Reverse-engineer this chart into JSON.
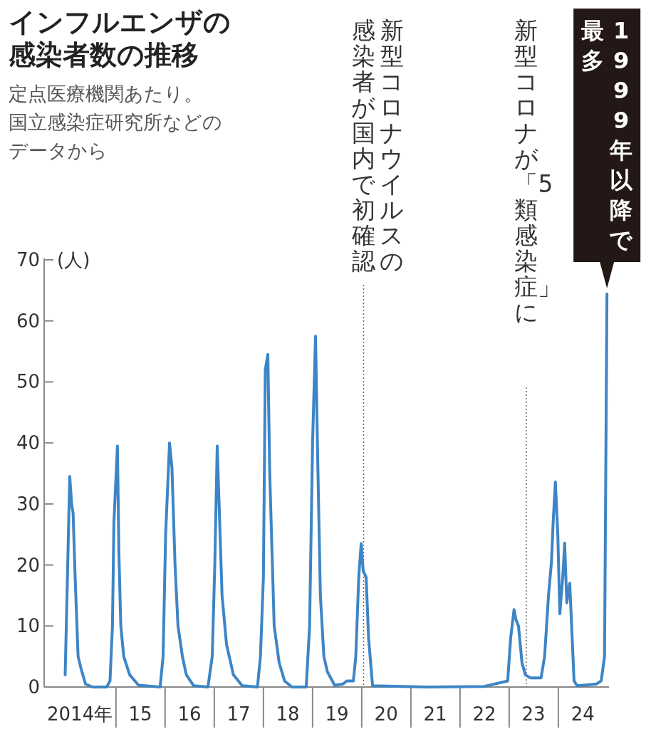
{
  "chart_data": {
    "type": "line",
    "title": "インフルエンザの感染者数の推移",
    "subtitle": "定点医療機関あたり。",
    "ylabel": "(人)",
    "xlim": [
      "2013-07-17",
      "2025-01-12"
    ],
    "ylim": [
      0,
      70
    ],
    "yticks": [
      0,
      10,
      20,
      30,
      40,
      50,
      60,
      70
    ],
    "xticks": [
      {
        "value": "2014-04-08",
        "label": "2014年"
      },
      {
        "value": "2015",
        "label": null
      },
      {
        "value": "2015-07",
        "label": "15"
      },
      {
        "value": "2016",
        "label": null
      },
      {
        "value": "2016-07",
        "label": "16"
      },
      {
        "value": "2017",
        "label": null
      },
      {
        "value": "2017-07",
        "label": "17"
      },
      {
        "value": "2018",
        "label": null
      },
      {
        "value": "2018-07",
        "label": "18"
      },
      {
        "value": "2019",
        "label": null
      },
      {
        "value": "2019-07",
        "label": "19"
      },
      {
        "value": "2020",
        "label": null
      },
      {
        "value": "2020-07",
        "label": "20"
      },
      {
        "value": "2021",
        "label": null
      },
      {
        "value": "2021-07",
        "label": "21"
      },
      {
        "value": "2022",
        "label": null
      },
      {
        "value": "2022-07",
        "label": "22"
      },
      {
        "value": "2023",
        "label": null
      },
      {
        "value": "2023-07",
        "label": "23"
      },
      {
        "value": "2024",
        "label": null
      },
      {
        "value": "2024-07",
        "label": "24"
      }
    ],
    "grid": false,
    "marker": "none",
    "line_style": "solid",
    "ref_lines": [
      {
        "axis": "x",
        "value": "2020-01-15",
        "label": "新型コロナウイルスの感染者が国内で初確認",
        "color": "#666666",
        "line_style": "dotted"
      },
      {
        "axis": "x",
        "value": "2023-05-08",
        "label": "新型コロナが「5類感染症」に",
        "color": "#666666",
        "line_style": "dotted"
      }
    ],
    "annotations": [
      {
        "text": "1999年以降で最多"
      },
      "国立感染症研究所などのデータから"
    ],
    "series": [
      {
        "color": "#3d85c6",
        "x": [
          "2013-12-20",
          "2014-01-23",
          "2014-02-06",
          "2014-02-17",
          "2014-03-04",
          "2014-03-26",
          "2014-04-17",
          "2014-05-20",
          "2014-07-10",
          "2014-10-24",
          "2014-11-18",
          "2014-12-06",
          "2014-12-17",
          "2015-01-12",
          "2015-01-23",
          "2015-02-06",
          "2015-02-28",
          "2015-04-13",
          "2015-06-18",
          "2015-11-25",
          "2015-12-17",
          "2016-01-05",
          "2016-02-03",
          "2016-02-21",
          "2016-03-15",
          "2016-04-06",
          "2016-05-09",
          "2016-06-07",
          "2016-08-01",
          "2016-11-15",
          "2016-12-17",
          "2017-01-05",
          "2017-01-23",
          "2017-02-06",
          "2017-02-28",
          "2017-04-02",
          "2017-05-23",
          "2017-07-28",
          "2017-11-18",
          "2017-12-10",
          "2018-01-01",
          "2018-01-15",
          "2018-02-03",
          "2018-02-17",
          "2018-03-22",
          "2018-04-28",
          "2018-06-07",
          "2018-08-01",
          "2018-11-15",
          "2018-12-10",
          "2019-01-01",
          "2019-01-23",
          "2019-02-06",
          "2019-02-28",
          "2019-03-26",
          "2019-04-21",
          "2019-06-14",
          "2019-08-15",
          "2019-09-13",
          "2019-10-31",
          "2019-11-18",
          "2019-12-10",
          "2019-12-28",
          "2020-01-12",
          "2020-02-03",
          "2020-02-21",
          "2020-03-22",
          "2021-05-01",
          "2022-06-29",
          "2022-12-21",
          "2023-01-12",
          "2023-02-06",
          "2023-02-21",
          "2023-03-11",
          "2023-04-06",
          "2023-05-01",
          "2023-06-07",
          "2023-08-26",
          "2023-09-21",
          "2023-10-20",
          "2023-11-11",
          "2023-11-25",
          "2023-12-10",
          "2023-12-28",
          "2024-01-12",
          "2024-02-03",
          "2024-02-17",
          "2024-03-04",
          "2024-03-26",
          "2024-04-13",
          "2024-04-27",
          "2024-05-20",
          "2024-10-12",
          "2024-11-15",
          "2024-12-10",
          "2024-12-28"
        ],
        "values": [
          2,
          34.5,
          30,
          28.5,
          18,
          5,
          3,
          0.5,
          0,
          0,
          1,
          10,
          27,
          39.5,
          22,
          10,
          5,
          2,
          0.3,
          0,
          5,
          25,
          40,
          36,
          20,
          10,
          5,
          2,
          0.2,
          0,
          5,
          20,
          39.5,
          30,
          15,
          7,
          2,
          0.2,
          0,
          5,
          18,
          52,
          54.5,
          35,
          10,
          4,
          1,
          0,
          0,
          10,
          40,
          57.5,
          40,
          15,
          5,
          2.5,
          0.3,
          0.5,
          1,
          1,
          5,
          18,
          23.5,
          19,
          18,
          8,
          0.2,
          0,
          0.1,
          1,
          8,
          12.7,
          11,
          10,
          4,
          2,
          1.5,
          1.5,
          5,
          15,
          20.5,
          27.7,
          33.6,
          25,
          12,
          18,
          23.6,
          13.8,
          17,
          8,
          1,
          0.2,
          0.5,
          1,
          5,
          64.4
        ]
      }
    ]
  }
}
